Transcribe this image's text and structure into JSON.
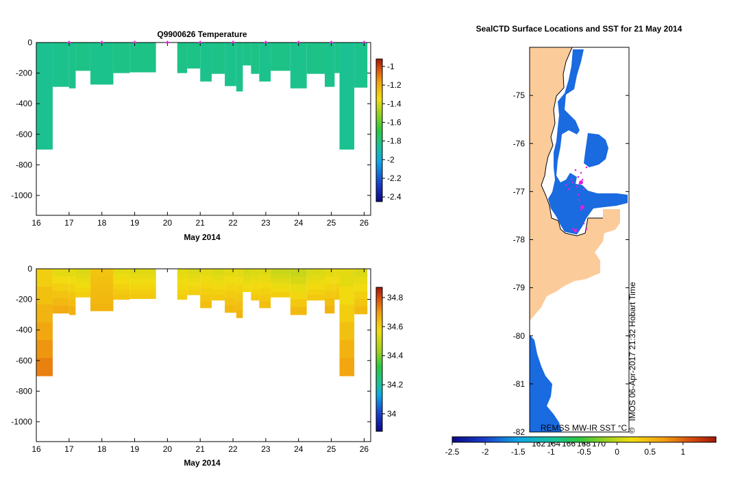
{
  "chart_data": [
    {
      "type": "heatmap",
      "id": "temperature",
      "title": "Q9900626  Temperature",
      "xlabel": "May 2014",
      "ylabel": "",
      "xlim": [
        16,
        26.2
      ],
      "ylim": [
        -1130,
        0
      ],
      "xticks": [
        "16",
        "17",
        "18",
        "19",
        "20",
        "21",
        "22",
        "23",
        "24",
        "25",
        "26"
      ],
      "yticks": [
        "0",
        "-200",
        "-400",
        "-600",
        "-800",
        "-1000"
      ],
      "colorbar": {
        "min": -2.45,
        "max": -0.92,
        "ticks": [
          "-1",
          "-1.2",
          "-1.4",
          "-1.6",
          "-1.8",
          "-2",
          "-2.2",
          "-2.4"
        ]
      },
      "profile_markers_x": [
        17,
        18,
        19,
        20,
        21,
        22,
        23,
        24,
        25,
        26
      ],
      "profiles": [
        {
          "x0": 16.0,
          "x1": 16.5,
          "depth": 700,
          "value": -1.84
        },
        {
          "x0": 16.5,
          "x1": 17.0,
          "depth": 290,
          "value": -1.83
        },
        {
          "x0": 17.0,
          "x1": 17.2,
          "depth": 300,
          "value": -1.83
        },
        {
          "x0": 17.2,
          "x1": 17.65,
          "depth": 185,
          "value": -1.82
        },
        {
          "x0": 17.65,
          "x1": 18.35,
          "depth": 275,
          "value": -1.83
        },
        {
          "x0": 18.35,
          "x1": 18.85,
          "depth": 200,
          "value": -1.82
        },
        {
          "x0": 18.85,
          "x1": 19.65,
          "depth": 195,
          "value": -1.82
        },
        {
          "x0": 20.3,
          "x1": 20.6,
          "depth": 200,
          "value": -1.82
        },
        {
          "x0": 20.6,
          "x1": 21.0,
          "depth": 170,
          "value": -1.82
        },
        {
          "x0": 21.0,
          "x1": 21.35,
          "depth": 255,
          "value": -1.83
        },
        {
          "x0": 21.35,
          "x1": 21.75,
          "depth": 205,
          "value": -1.82
        },
        {
          "x0": 21.75,
          "x1": 22.1,
          "depth": 285,
          "value": -1.83
        },
        {
          "x0": 22.1,
          "x1": 22.3,
          "depth": 320,
          "value": -1.83
        },
        {
          "x0": 22.3,
          "x1": 22.55,
          "depth": 150,
          "value": -1.82
        },
        {
          "x0": 22.55,
          "x1": 22.8,
          "depth": 205,
          "value": -1.82
        },
        {
          "x0": 22.8,
          "x1": 23.15,
          "depth": 255,
          "value": -1.83
        },
        {
          "x0": 23.15,
          "x1": 23.75,
          "depth": 185,
          "value": -1.82
        },
        {
          "x0": 23.75,
          "x1": 24.25,
          "depth": 300,
          "value": -1.83
        },
        {
          "x0": 24.25,
          "x1": 24.8,
          "depth": 205,
          "value": -1.82
        },
        {
          "x0": 24.8,
          "x1": 25.1,
          "depth": 290,
          "value": -1.83
        },
        {
          "x0": 25.1,
          "x1": 25.25,
          "depth": 200,
          "value": -1.82
        },
        {
          "x0": 25.25,
          "x1": 25.7,
          "depth": 700,
          "value": -1.84
        },
        {
          "x0": 25.7,
          "x1": 26.1,
          "depth": 295,
          "value": -1.83
        }
      ]
    },
    {
      "type": "heatmap",
      "id": "salinity",
      "title": "",
      "xlabel": "May 2014",
      "ylabel": "",
      "xlim": [
        16,
        26.2
      ],
      "ylim": [
        -1130,
        0
      ],
      "xticks": [
        "16",
        "17",
        "18",
        "19",
        "20",
        "21",
        "22",
        "23",
        "24",
        "25",
        "26"
      ],
      "yticks": [
        "0",
        "-200",
        "-400",
        "-600",
        "-800",
        "-1000"
      ],
      "colorbar": {
        "min": 33.88,
        "max": 34.87,
        "ticks": [
          "34.8",
          "34.6",
          "34.4",
          "34.2",
          "34"
        ]
      },
      "profiles": [
        {
          "x0": 16.0,
          "x1": 16.5,
          "depth": 700,
          "surface": 34.6,
          "bottom": 34.73
        },
        {
          "x0": 16.5,
          "x1": 17.0,
          "depth": 290,
          "surface": 34.55,
          "bottom": 34.67
        },
        {
          "x0": 17.0,
          "x1": 17.2,
          "depth": 300,
          "surface": 34.55,
          "bottom": 34.66
        },
        {
          "x0": 17.2,
          "x1": 17.65,
          "depth": 185,
          "surface": 34.53,
          "bottom": 34.6
        },
        {
          "x0": 17.65,
          "x1": 18.35,
          "depth": 275,
          "surface": 34.62,
          "bottom": 34.65
        },
        {
          "x0": 18.35,
          "x1": 18.85,
          "depth": 200,
          "surface": 34.55,
          "bottom": 34.62
        },
        {
          "x0": 18.85,
          "x1": 19.65,
          "depth": 195,
          "surface": 34.54,
          "bottom": 34.61
        },
        {
          "x0": 20.3,
          "x1": 20.6,
          "depth": 200,
          "surface": 34.55,
          "bottom": 34.6
        },
        {
          "x0": 20.6,
          "x1": 21.0,
          "depth": 170,
          "surface": 34.53,
          "bottom": 34.6
        },
        {
          "x0": 21.0,
          "x1": 21.35,
          "depth": 255,
          "surface": 34.55,
          "bottom": 34.63
        },
        {
          "x0": 21.35,
          "x1": 21.75,
          "depth": 205,
          "surface": 34.53,
          "bottom": 34.61
        },
        {
          "x0": 21.75,
          "x1": 22.1,
          "depth": 285,
          "surface": 34.55,
          "bottom": 34.64
        },
        {
          "x0": 22.1,
          "x1": 22.3,
          "depth": 320,
          "surface": 34.55,
          "bottom": 34.65
        },
        {
          "x0": 22.3,
          "x1": 22.55,
          "depth": 150,
          "surface": 34.52,
          "bottom": 34.58
        },
        {
          "x0": 22.55,
          "x1": 22.8,
          "depth": 205,
          "surface": 34.53,
          "bottom": 34.61
        },
        {
          "x0": 22.8,
          "x1": 23.15,
          "depth": 255,
          "surface": 34.54,
          "bottom": 34.63
        },
        {
          "x0": 23.15,
          "x1": 23.75,
          "depth": 185,
          "surface": 34.5,
          "bottom": 34.6
        },
        {
          "x0": 23.75,
          "x1": 24.25,
          "depth": 300,
          "surface": 34.5,
          "bottom": 34.64
        },
        {
          "x0": 24.25,
          "x1": 24.8,
          "depth": 205,
          "surface": 34.53,
          "bottom": 34.61
        },
        {
          "x0": 24.8,
          "x1": 25.1,
          "depth": 290,
          "surface": 34.55,
          "bottom": 34.65
        },
        {
          "x0": 25.1,
          "x1": 25.25,
          "depth": 200,
          "surface": 34.55,
          "bottom": 34.62
        },
        {
          "x0": 25.25,
          "x1": 25.7,
          "depth": 700,
          "surface": 34.55,
          "bottom": 34.68
        },
        {
          "x0": 25.7,
          "x1": 26.1,
          "depth": 295,
          "surface": 34.53,
          "bottom": 34.64
        }
      ]
    },
    {
      "type": "map",
      "id": "sst-map",
      "title": "SealCTD Surface Locations and SST for 21 May 2014",
      "ylim": [
        -82,
        -74
      ],
      "yticks": [
        "-75",
        "-76",
        "-77",
        "-78",
        "-79",
        "-80",
        "-81",
        "-82"
      ],
      "colorbar": {
        "label": "REMSS MW-IR SST °C",
        "min": -2.5,
        "max": 1.5,
        "ticks": [
          "-2.5",
          "-2",
          "-1.5",
          "-1",
          "-0.5",
          "0",
          "0.5",
          "1"
        ]
      },
      "lon_labels": [
        "162",
        "164",
        "166",
        "168",
        "170"
      ],
      "watermark": "IMOS 06-Apr-2017 21:32 Hobart Time",
      "copyright_symbol": "©"
    }
  ]
}
